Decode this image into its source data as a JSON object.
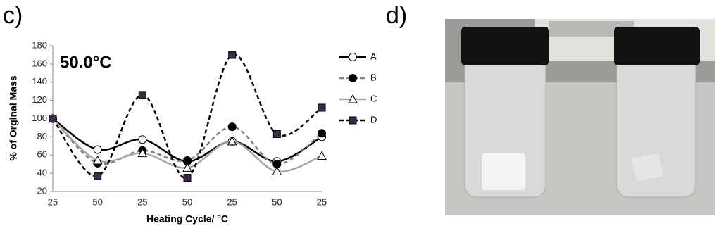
{
  "chart_data": {
    "type": "line",
    "panel_label": "c)",
    "annotation": "50.0°C",
    "y_label": "% of Orginal Mass",
    "x_label": "Heating Cycle/ °C",
    "categories": [
      "25",
      "50",
      "25",
      "50",
      "25",
      "50",
      "25"
    ],
    "ylim": [
      20,
      180
    ],
    "yticks": [
      20,
      40,
      60,
      80,
      100,
      120,
      140,
      160,
      180
    ],
    "smooth": true,
    "series": [
      {
        "name": "A",
        "color": "#000000",
        "dash": "solid",
        "marker": "circle",
        "marker_fill": "#ffffff",
        "values": [
          100,
          66,
          77,
          53,
          75,
          53,
          80
        ]
      },
      {
        "name": "B",
        "color": "#808080",
        "dash": "dashed",
        "marker": "circle",
        "marker_fill": "#000000",
        "values": [
          100,
          51,
          65,
          54,
          91,
          50,
          84
        ]
      },
      {
        "name": "C",
        "color": "#a6a6a6",
        "dash": "solid",
        "marker": "triangle",
        "marker_fill": "#ffffff",
        "values": [
          100,
          54,
          62,
          46,
          75,
          42,
          59
        ]
      },
      {
        "name": "D",
        "color": "#000000",
        "dash": "dashed",
        "marker": "square",
        "marker_fill": "#3a2a4a",
        "values": [
          100,
          37,
          126,
          35,
          170,
          83,
          112
        ]
      }
    ]
  },
  "photo": {
    "panel_label": "d)"
  }
}
